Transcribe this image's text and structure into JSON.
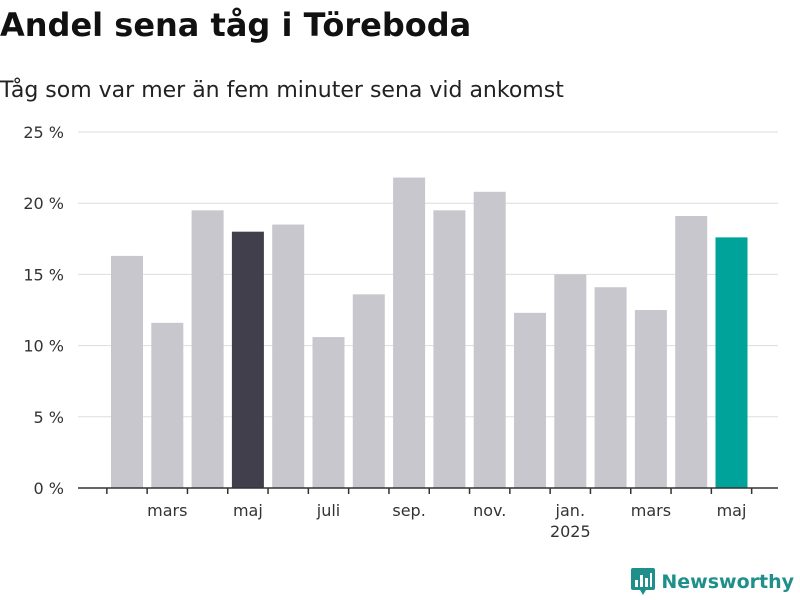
{
  "header": {
    "title": "Andel sena tåg i Töreboda",
    "subtitle": "Tåg som var mer än fem minuter sena vid ankomst"
  },
  "brand": {
    "name": "Newsworthy",
    "icon": "bar-chart-speech-bubble-icon",
    "color": "#1f8f8c"
  },
  "colors": {
    "default_bar": "#c8c7ce",
    "highlight_bar": "#413f4c",
    "latest_bar": "#00a39a",
    "gridline": "#dddddd",
    "axis": "#333333"
  },
  "chart_data": {
    "type": "bar",
    "title": "Andel sena tåg i Töreboda",
    "subtitle": "Tåg som var mer än fem minuter sena vid ankomst",
    "months": [
      "2024-02",
      "2024-03",
      "2024-04",
      "2024-05",
      "2024-06",
      "2024-07",
      "2024-08",
      "2024-09",
      "2024-10",
      "2024-11",
      "2024-12",
      "2025-01",
      "2025-02",
      "2025-03",
      "2025-04",
      "2025-05"
    ],
    "values": [
      16.3,
      11.6,
      19.5,
      18.0,
      18.5,
      10.6,
      13.6,
      21.8,
      19.5,
      20.8,
      12.3,
      15.0,
      14.1,
      12.5,
      19.1,
      17.6
    ],
    "highlight": [
      "default",
      "default",
      "default",
      "dark",
      "default",
      "default",
      "default",
      "default",
      "default",
      "default",
      "default",
      "default",
      "default",
      "default",
      "default",
      "latest"
    ],
    "x_tick_labels": [
      {
        "month": "2024-03",
        "label": "mars",
        "sublabel": ""
      },
      {
        "month": "2024-05",
        "label": "maj",
        "sublabel": ""
      },
      {
        "month": "2024-07",
        "label": "juli",
        "sublabel": ""
      },
      {
        "month": "2024-09",
        "label": "sep.",
        "sublabel": ""
      },
      {
        "month": "2024-11",
        "label": "nov.",
        "sublabel": ""
      },
      {
        "month": "2025-01",
        "label": "jan.",
        "sublabel": "2025"
      },
      {
        "month": "2025-03",
        "label": "mars",
        "sublabel": ""
      },
      {
        "month": "2025-05",
        "label": "maj",
        "sublabel": ""
      }
    ],
    "y_ticks": [
      0,
      5,
      10,
      15,
      20,
      25
    ],
    "y_tick_labels": [
      "0 %",
      "5 %",
      "10 %",
      "15 %",
      "20 %",
      "25 %"
    ],
    "ylim": [
      0,
      25
    ],
    "grid": true,
    "legend": "none"
  }
}
